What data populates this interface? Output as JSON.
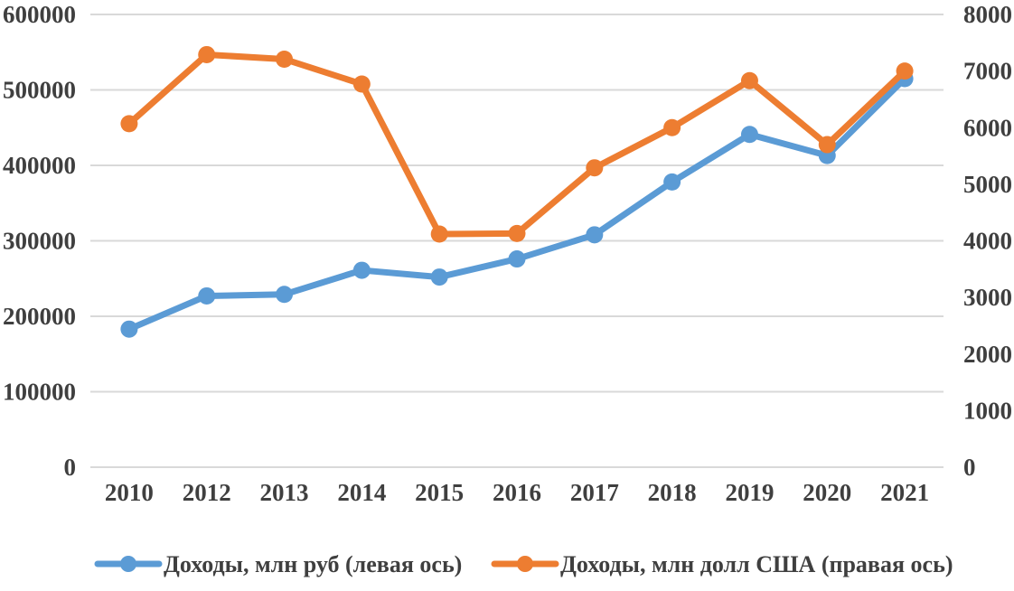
{
  "chart_data": {
    "type": "line",
    "title": "",
    "categories": [
      "2010",
      "2012",
      "2013",
      "2014",
      "2015",
      "2016",
      "2017",
      "2018",
      "2019",
      "2020",
      "2021"
    ],
    "series": [
      {
        "id": "rub",
        "name": "Доходы, млн руб (левая ось)",
        "axis": "left",
        "color": "#5B9BD5",
        "values": [
          183000,
          227000,
          229000,
          261000,
          252000,
          276000,
          308000,
          378000,
          441000,
          413000,
          515000
        ]
      },
      {
        "id": "usd",
        "name": "Доходы, млн долл США (правая ось)",
        "axis": "right",
        "color": "#ED7D31",
        "values": [
          6070,
          7290,
          7210,
          6770,
          4120,
          4130,
          5290,
          6000,
          6830,
          5700,
          7000
        ]
      }
    ],
    "left_axis": {
      "min": 0,
      "max": 600000,
      "step": 100000,
      "tick_labels": [
        "600000",
        "500000",
        "400000",
        "300000",
        "200000",
        "100000",
        "0"
      ]
    },
    "right_axis": {
      "min": 0,
      "max": 8000,
      "step": 1000,
      "tick_labels": [
        "8000",
        "7000",
        "6000",
        "5000",
        "4000",
        "3000",
        "2000",
        "1000",
        "0"
      ]
    },
    "grid": true,
    "gridline_color": "#D9D9D9",
    "text_color": "#3f3f3f",
    "legend_position": "bottom"
  }
}
